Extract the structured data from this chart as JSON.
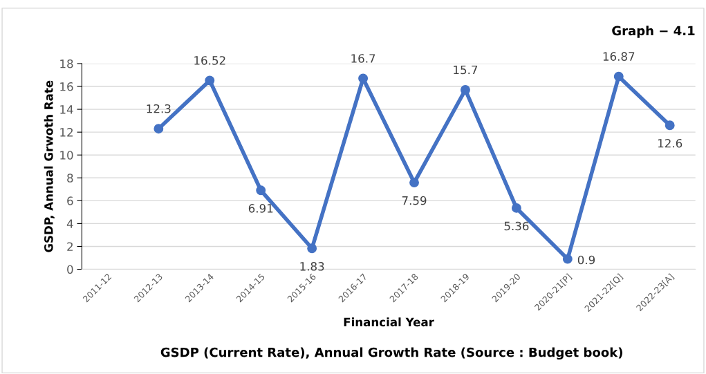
{
  "chart_data": {
    "type": "line",
    "title": "Graph − 4.1",
    "xlabel": "Financial Year",
    "ylabel": "GSDP, Annual Grwoth Rate",
    "categories": [
      "2011-12",
      "2012-13",
      "2013-14",
      "2014-15",
      "2015-16",
      "2016-17",
      "2017-18",
      "2018-19",
      "2019-20",
      "2020-21[P]",
      "2021-22[Q]",
      "2022-23[A]"
    ],
    "series": [
      {
        "color": "#4472c4",
        "values": [
          null,
          12.3,
          16.52,
          6.91,
          1.83,
          16.7,
          7.59,
          15.7,
          5.36,
          0.9,
          16.87,
          12.6
        ]
      }
    ],
    "ylim": [
      0,
      18
    ],
    "yticks": [
      0,
      2,
      4,
      6,
      8,
      10,
      12,
      14,
      16,
      18
    ],
    "grid": "y",
    "marker": "circle",
    "line_style": "solid",
    "data_labels": true,
    "annotations": [
      "GSDP (Current Rate), Annual Growth Rate (Source : Budget book)"
    ]
  }
}
